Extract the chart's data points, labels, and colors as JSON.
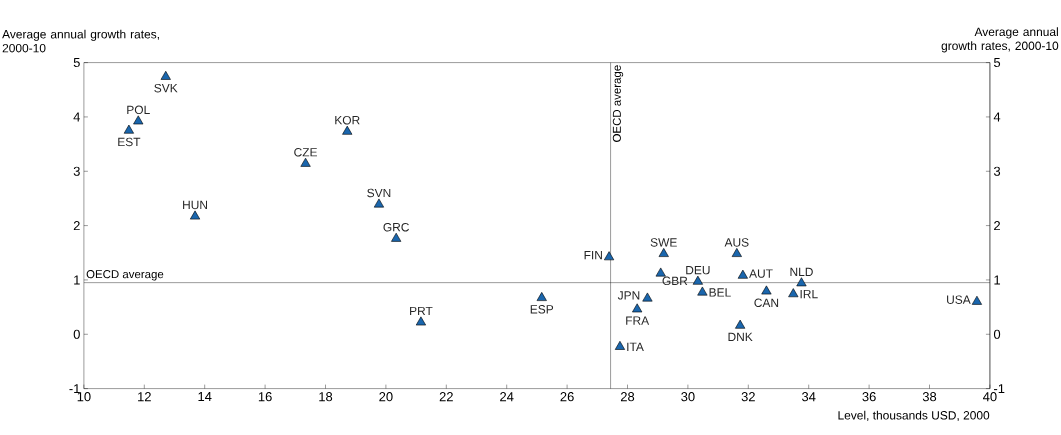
{
  "chart_data": {
    "type": "scatter",
    "xlabel": "Level, thousands USD, 2000",
    "ylabel": "Average annual growth rates, 2000-10",
    "y2label": "Average annual growth rates, 2000-10",
    "x": [
      12.71,
      11.8,
      11.49,
      18.72,
      17.34,
      13.68,
      19.77,
      20.34,
      21.16,
      25.16,
      27.39,
      29.2,
      31.62,
      29.1,
      31.82,
      30.33,
      33.76,
      30.48,
      32.6,
      33.49,
      28.66,
      28.32,
      39.57,
      31.73,
      27.75
    ],
    "values": [
      4.74,
      3.92,
      3.75,
      3.73,
      3.14,
      2.17,
      2.39,
      1.76,
      0.22,
      0.67,
      1.42,
      1.48,
      1.48,
      1.12,
      1.08,
      0.97,
      0.94,
      0.77,
      0.79,
      0.74,
      0.66,
      0.46,
      0.6,
      0.16,
      -0.23
    ],
    "color": "#1a66ad",
    "marker": "triangle",
    "annotations": [
      {
        "text": "SVK",
        "x": 12.71,
        "y": 4.74
      },
      {
        "text": "POL",
        "x": 11.8,
        "y": 3.92
      },
      {
        "text": "EST",
        "x": 11.49,
        "y": 3.75
      },
      {
        "text": "KOR",
        "x": 18.72,
        "y": 3.73
      },
      {
        "text": "CZE",
        "x": 17.34,
        "y": 3.14
      },
      {
        "text": "HUN",
        "x": 13.68,
        "y": 2.17
      },
      {
        "text": "SVN",
        "x": 19.77,
        "y": 2.39
      },
      {
        "text": "GRC",
        "x": 20.34,
        "y": 1.76
      },
      {
        "text": "PRT",
        "x": 21.16,
        "y": 0.22
      },
      {
        "text": "ESP",
        "x": 25.16,
        "y": 0.67
      },
      {
        "text": "FIN",
        "x": 27.39,
        "y": 1.42
      },
      {
        "text": "SWE",
        "x": 29.2,
        "y": 1.48
      },
      {
        "text": "AUS",
        "x": 31.62,
        "y": 1.48
      },
      {
        "text": "GBR",
        "x": 29.1,
        "y": 1.12
      },
      {
        "text": "AUT",
        "x": 31.82,
        "y": 1.08
      },
      {
        "text": "DEU",
        "x": 30.33,
        "y": 0.97
      },
      {
        "text": "NLD",
        "x": 33.76,
        "y": 0.94
      },
      {
        "text": "BEL",
        "x": 30.48,
        "y": 0.77
      },
      {
        "text": "CAN",
        "x": 32.6,
        "y": 0.79
      },
      {
        "text": "IRL",
        "x": 33.49,
        "y": 0.74
      },
      {
        "text": "JPN",
        "x": 28.66,
        "y": 0.66
      },
      {
        "text": "FRA",
        "x": 28.32,
        "y": 0.46
      },
      {
        "text": "USA",
        "x": 39.57,
        "y": 0.6
      },
      {
        "text": "DNK",
        "x": 31.73,
        "y": 0.16
      },
      {
        "text": "ITA",
        "x": 27.75,
        "y": -0.23
      }
    ],
    "ref_lines": [
      {
        "axis": "y",
        "value": 0.95,
        "label": "OECD average"
      },
      {
        "axis": "x",
        "value": 27.44,
        "label": "OECD average"
      }
    ],
    "xlim": [
      10,
      40
    ],
    "xticks": [
      10,
      12,
      14,
      16,
      18,
      20,
      22,
      24,
      26,
      28,
      30,
      32,
      34,
      36,
      38,
      40
    ],
    "ylim": [
      -1,
      5
    ],
    "yticks": [
      -1,
      0,
      1,
      2,
      3,
      4,
      5
    ],
    "y2lim": [
      -1,
      5
    ],
    "y2ticks": [
      -1,
      0,
      1,
      2,
      3,
      4,
      5
    ]
  }
}
